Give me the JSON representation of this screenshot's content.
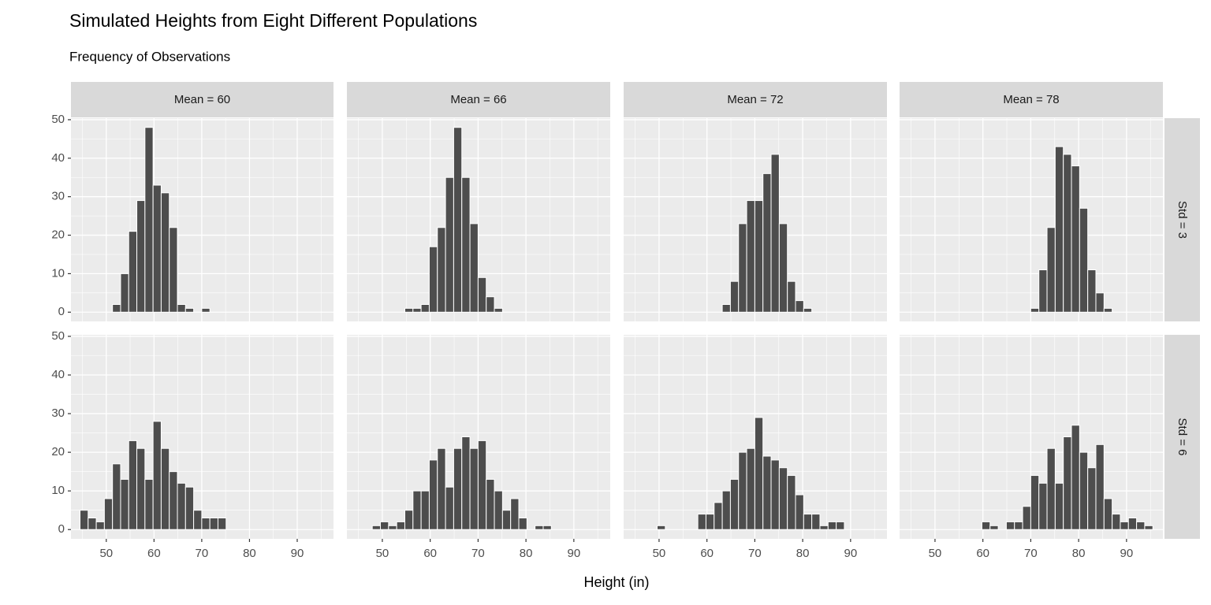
{
  "title": "Simulated Heights from Eight Different Populations",
  "subtitle": "Frequency of Observations",
  "xlabel": "Height (in)",
  "column_strips": [
    "Mean = 60",
    "Mean = 66",
    "Mean = 72",
    "Mean = 78"
  ],
  "row_strips": [
    "Std = 3",
    "Std = 6"
  ],
  "chart_data": [
    {
      "type": "histogram",
      "color": "#4d4d4d",
      "grid": true,
      "bins": [
        44.5,
        46.2,
        47.9,
        49.6,
        51.3,
        53,
        54.7,
        56.4,
        58.1,
        59.8,
        61.5,
        63.2,
        64.9,
        66.6,
        68.3,
        70,
        71.7,
        73.4,
        75.1,
        76.8,
        78.5,
        80.2,
        81.9,
        83.6,
        85.3,
        87,
        88.7,
        90.4,
        92.1,
        93.8,
        95.5
      ],
      "values": [
        0,
        0,
        0,
        0,
        2,
        10,
        21,
        29,
        48,
        33,
        31,
        22,
        2,
        1,
        0,
        1,
        0,
        0,
        0,
        0,
        0,
        0,
        0,
        0,
        0,
        0,
        0,
        0,
        0,
        0
      ],
      "xlim": [
        42.6,
        97.6
      ],
      "ylim": [
        -2.4,
        50.4
      ],
      "xticks": [
        50,
        60,
        70,
        80,
        90
      ],
      "yticks": [
        0,
        10,
        20,
        30,
        40,
        50
      ]
    },
    {
      "type": "histogram",
      "color": "#4d4d4d",
      "grid": true,
      "bins": [
        44.5,
        46.2,
        47.9,
        49.6,
        51.3,
        53,
        54.7,
        56.4,
        58.1,
        59.8,
        61.5,
        63.2,
        64.9,
        66.6,
        68.3,
        70,
        71.7,
        73.4,
        75.1,
        76.8,
        78.5,
        80.2,
        81.9,
        83.6,
        85.3,
        87,
        88.7,
        90.4,
        92.1,
        93.8,
        95.5
      ],
      "values": [
        0,
        0,
        0,
        0,
        0,
        0,
        1,
        1,
        2,
        17,
        22,
        35,
        48,
        35,
        23,
        9,
        4,
        1,
        0,
        0,
        0,
        0,
        0,
        0,
        0,
        0,
        0,
        0,
        0,
        0
      ],
      "xlim": [
        42.6,
        97.6
      ],
      "ylim": [
        -2.4,
        50.4
      ],
      "xticks": [
        50,
        60,
        70,
        80,
        90
      ],
      "yticks": [
        0,
        10,
        20,
        30,
        40,
        50
      ]
    },
    {
      "type": "histogram",
      "color": "#4d4d4d",
      "grid": true,
      "bins": [
        44.5,
        46.2,
        47.9,
        49.6,
        51.3,
        53,
        54.7,
        56.4,
        58.1,
        59.8,
        61.5,
        63.2,
        64.9,
        66.6,
        68.3,
        70,
        71.7,
        73.4,
        75.1,
        76.8,
        78.5,
        80.2,
        81.9,
        83.6,
        85.3,
        87,
        88.7,
        90.4,
        92.1,
        93.8,
        95.5
      ],
      "values": [
        0,
        0,
        0,
        0,
        0,
        0,
        0,
        0,
        0,
        0,
        0,
        2,
        8,
        23,
        29,
        29,
        36,
        41,
        23,
        8,
        3,
        1,
        0,
        0,
        0,
        0,
        0,
        0,
        0,
        0
      ],
      "xlim": [
        42.6,
        97.6
      ],
      "ylim": [
        -2.4,
        50.4
      ],
      "xticks": [
        50,
        60,
        70,
        80,
        90
      ],
      "yticks": [
        0,
        10,
        20,
        30,
        40,
        50
      ]
    },
    {
      "type": "histogram",
      "color": "#4d4d4d",
      "grid": true,
      "bins": [
        44.5,
        46.2,
        47.9,
        49.6,
        51.3,
        53,
        54.7,
        56.4,
        58.1,
        59.8,
        61.5,
        63.2,
        64.9,
        66.6,
        68.3,
        70,
        71.7,
        73.4,
        75.1,
        76.8,
        78.5,
        80.2,
        81.9,
        83.6,
        85.3,
        87,
        88.7,
        90.4,
        92.1,
        93.8,
        95.5
      ],
      "values": [
        0,
        0,
        0,
        0,
        0,
        0,
        0,
        0,
        0,
        0,
        0,
        0,
        0,
        0,
        0,
        1,
        11,
        22,
        43,
        41,
        38,
        27,
        11,
        5,
        1,
        0,
        0,
        0,
        0,
        0
      ],
      "xlim": [
        42.6,
        97.6
      ],
      "ylim": [
        -2.4,
        50.4
      ],
      "xticks": [
        50,
        60,
        70,
        80,
        90
      ],
      "yticks": [
        0,
        10,
        20,
        30,
        40,
        50
      ]
    },
    {
      "type": "histogram",
      "color": "#4d4d4d",
      "grid": true,
      "bins": [
        44.5,
        46.2,
        47.9,
        49.6,
        51.3,
        53,
        54.7,
        56.4,
        58.1,
        59.8,
        61.5,
        63.2,
        64.9,
        66.6,
        68.3,
        70,
        71.7,
        73.4,
        75.1,
        76.8,
        78.5,
        80.2,
        81.9,
        83.6,
        85.3,
        87,
        88.7,
        90.4,
        92.1,
        93.8,
        95.5
      ],
      "values": [
        5,
        3,
        2,
        8,
        17,
        13,
        23,
        21,
        13,
        28,
        21,
        15,
        12,
        11,
        5,
        3,
        3,
        3,
        0,
        0,
        0,
        0,
        0,
        0,
        0,
        0,
        0,
        0,
        0,
        0
      ],
      "xlim": [
        42.6,
        97.6
      ],
      "ylim": [
        -2.4,
        50.4
      ],
      "xticks": [
        50,
        60,
        70,
        80,
        90
      ],
      "yticks": [
        0,
        10,
        20,
        30,
        40,
        50
      ]
    },
    {
      "type": "histogram",
      "color": "#4d4d4d",
      "grid": true,
      "bins": [
        44.5,
        46.2,
        47.9,
        49.6,
        51.3,
        53,
        54.7,
        56.4,
        58.1,
        59.8,
        61.5,
        63.2,
        64.9,
        66.6,
        68.3,
        70,
        71.7,
        73.4,
        75.1,
        76.8,
        78.5,
        80.2,
        81.9,
        83.6,
        85.3,
        87,
        88.7,
        90.4,
        92.1,
        93.8,
        95.5
      ],
      "values": [
        0,
        0,
        1,
        2,
        1,
        2,
        5,
        10,
        10,
        18,
        21,
        11,
        21,
        24,
        21,
        23,
        13,
        10,
        5,
        8,
        3,
        0,
        1,
        1,
        0,
        0,
        0,
        0,
        0,
        0
      ],
      "xlim": [
        42.6,
        97.6
      ],
      "ylim": [
        -2.4,
        50.4
      ],
      "xticks": [
        50,
        60,
        70,
        80,
        90
      ],
      "yticks": [
        0,
        10,
        20,
        30,
        40,
        50
      ]
    },
    {
      "type": "histogram",
      "color": "#4d4d4d",
      "grid": true,
      "bins": [
        44.5,
        46.2,
        47.9,
        49.6,
        51.3,
        53,
        54.7,
        56.4,
        58.1,
        59.8,
        61.5,
        63.2,
        64.9,
        66.6,
        68.3,
        70,
        71.7,
        73.4,
        75.1,
        76.8,
        78.5,
        80.2,
        81.9,
        83.6,
        85.3,
        87,
        88.7,
        90.4,
        92.1,
        93.8,
        95.5
      ],
      "values": [
        0,
        0,
        0,
        1,
        0,
        0,
        0,
        0,
        4,
        4,
        7,
        10,
        13,
        20,
        21,
        29,
        19,
        18,
        16,
        14,
        9,
        4,
        4,
        1,
        2,
        2,
        0,
        0,
        0,
        0
      ],
      "xlim": [
        42.6,
        97.6
      ],
      "ylim": [
        -2.4,
        50.4
      ],
      "xticks": [
        50,
        60,
        70,
        80,
        90
      ],
      "yticks": [
        0,
        10,
        20,
        30,
        40,
        50
      ]
    },
    {
      "type": "histogram",
      "color": "#4d4d4d",
      "grid": true,
      "bins": [
        44.5,
        46.2,
        47.9,
        49.6,
        51.3,
        53,
        54.7,
        56.4,
        58.1,
        59.8,
        61.5,
        63.2,
        64.9,
        66.6,
        68.3,
        70,
        71.7,
        73.4,
        75.1,
        76.8,
        78.5,
        80.2,
        81.9,
        83.6,
        85.3,
        87,
        88.7,
        90.4,
        92.1,
        93.8,
        95.5
      ],
      "values": [
        0,
        0,
        0,
        0,
        0,
        0,
        0,
        0,
        0,
        2,
        1,
        0,
        2,
        2,
        6,
        14,
        12,
        21,
        12,
        24,
        27,
        20,
        16,
        22,
        8,
        4,
        2,
        3,
        2,
        1
      ],
      "xlim": [
        42.6,
        97.6
      ],
      "ylim": [
        -2.4,
        50.4
      ],
      "xticks": [
        50,
        60,
        70,
        80,
        90
      ],
      "yticks": [
        0,
        10,
        20,
        30,
        40,
        50
      ]
    }
  ]
}
